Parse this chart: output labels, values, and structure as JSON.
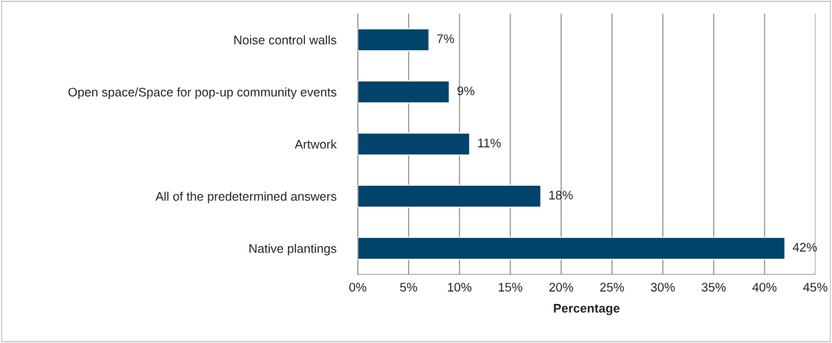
{
  "chart_data": {
    "type": "bar",
    "orientation": "horizontal",
    "xlabel": "Percentage",
    "categories": [
      "Noise control walls",
      "Open space/Space for pop-up community events",
      "Artwork",
      "All of the predetermined answers",
      "Native plantings"
    ],
    "values": [
      7,
      9,
      11,
      18,
      42
    ],
    "value_labels": [
      "7%",
      "9%",
      "11%",
      "18%",
      "42%"
    ],
    "color": "#00446b",
    "xlim": [
      0,
      45
    ],
    "xticks": [
      {
        "value": 0,
        "label": "0%"
      },
      {
        "value": 5,
        "label": "5%"
      },
      {
        "value": 10,
        "label": "10%"
      },
      {
        "value": 15,
        "label": "15%"
      },
      {
        "value": 20,
        "label": "20%"
      },
      {
        "value": 25,
        "label": "25%"
      },
      {
        "value": 30,
        "label": "30%"
      },
      {
        "value": 35,
        "label": "35%"
      },
      {
        "value": 40,
        "label": "40%"
      },
      {
        "value": 45,
        "label": "45%"
      }
    ],
    "grid": "x"
  }
}
